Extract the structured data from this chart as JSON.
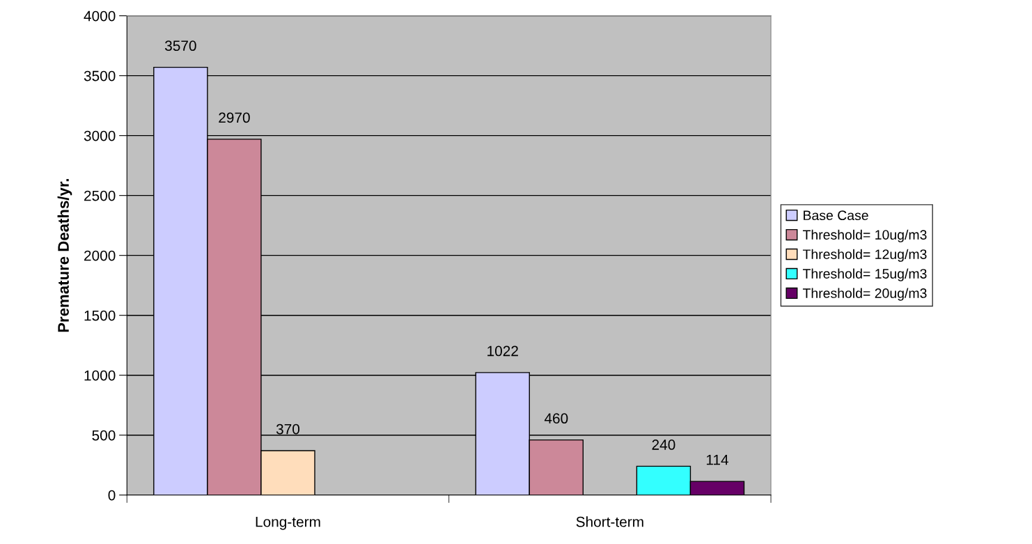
{
  "chart_data": {
    "type": "bar",
    "ylabel": "Premature Deaths/yr.",
    "categories": [
      "Long-term",
      "Short-term"
    ],
    "series": [
      {
        "name": "Base Case",
        "color": "#ccccff",
        "values": [
          3570,
          1022
        ]
      },
      {
        "name": "Threshold= 10ug/m3",
        "color": "#cc8899",
        "values": [
          2970,
          460
        ]
      },
      {
        "name": "Threshold= 12ug/m3",
        "color": "#ffddbb",
        "values": [
          370,
          null
        ]
      },
      {
        "name": "Threshold= 15ug/m3",
        "color": "#33ffff",
        "values": [
          null,
          240
        ]
      },
      {
        "name": "Threshold= 20ug/m3",
        "color": "#660066",
        "values": [
          null,
          114
        ]
      }
    ],
    "ylim": [
      0,
      4000
    ],
    "yticks": [
      0,
      500,
      1000,
      1500,
      2000,
      2500,
      3000,
      3500,
      4000
    ],
    "grid": "y",
    "legend": "right",
    "data_labels": true
  }
}
